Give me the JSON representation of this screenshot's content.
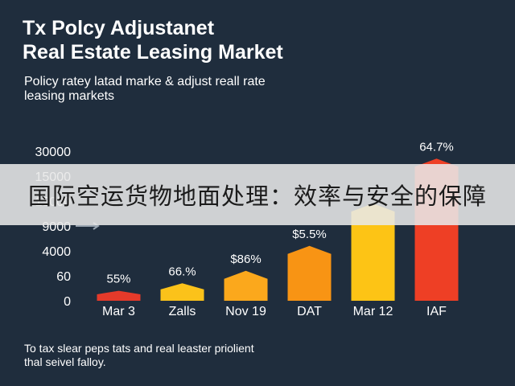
{
  "header": {
    "title_line1": "Tx Polcy Adjustanet",
    "title_line2": "Real Estate Leasing Market",
    "subtitle_line1": "Policy ratey latad marke & adjust reall rate",
    "subtitle_line2": "leasing markets"
  },
  "footnote": {
    "line1": "To tax slear peps tats and real leaster priolient",
    "line2": "thal seivel falloy."
  },
  "banner": {
    "text": "国际空运货物地面处理：效率与安全的保障"
  },
  "chart_data": {
    "type": "bar",
    "title": "",
    "xlabel": "",
    "ylabel": "",
    "y_tick_labels": [
      "0",
      "60",
      "4000",
      "9000",
      "15000",
      "15000",
      "30000"
    ],
    "categories": [
      "Mar 3",
      "Zalls",
      "Nov 19",
      "DAT",
      "Mar 12",
      "IAF"
    ],
    "values": [
      0.4,
      0.7,
      1.2,
      2.2,
      3.9,
      5.7
    ],
    "value_scale": "tick_index",
    "data_labels": [
      "55%",
      "66.%",
      "$86%",
      "$5.5%",
      "",
      "64.7%"
    ],
    "colors": [
      "#e53a2a",
      "#fbc21a",
      "#fba81c",
      "#f89414",
      "#fdc415",
      "#ee3f25"
    ],
    "grid": false
  }
}
